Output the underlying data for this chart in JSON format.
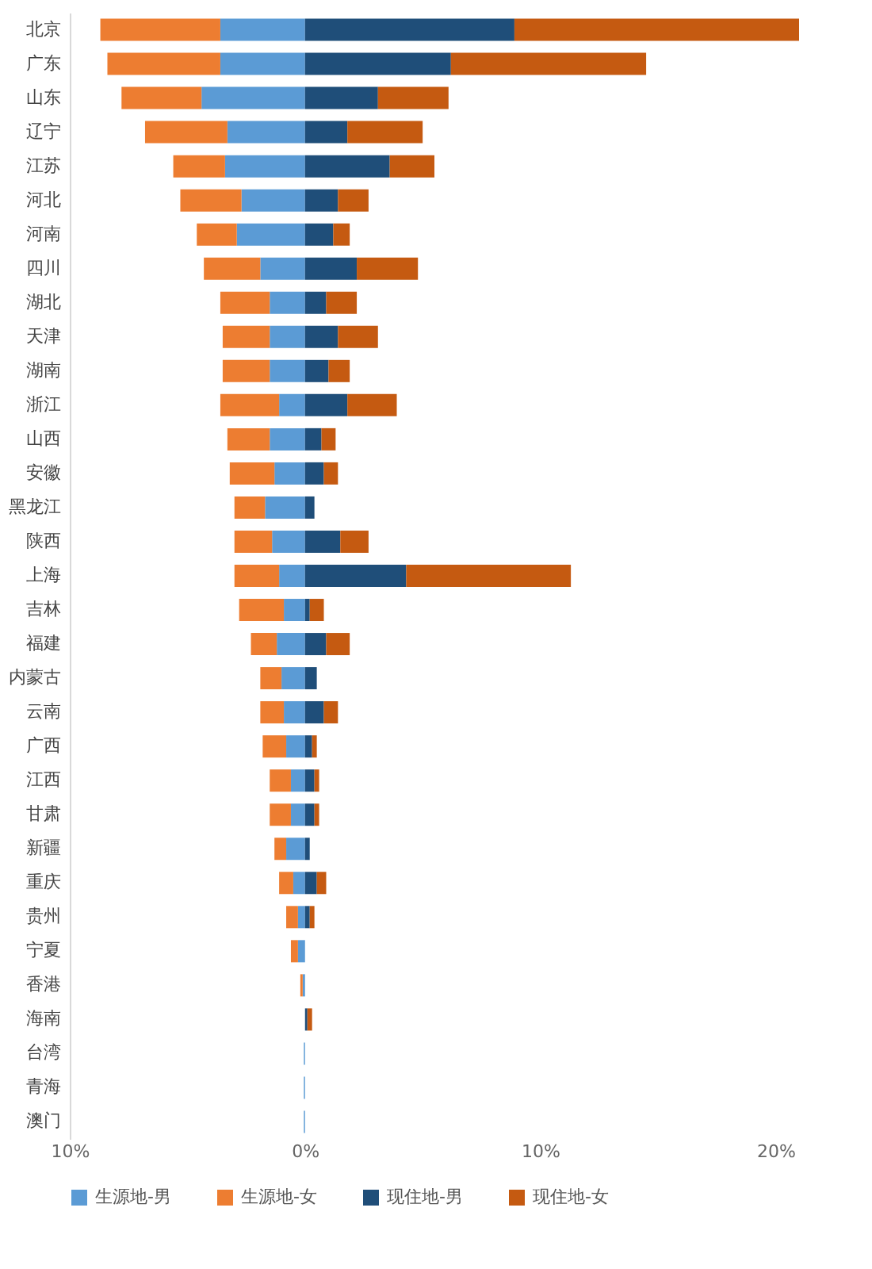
{
  "chart_data": {
    "type": "bar",
    "orientation": "horizontal",
    "stacked": true,
    "legend": "bottom",
    "grid": false,
    "categories": [
      "北京",
      "广东",
      "山东",
      "辽宁",
      "江苏",
      "河北",
      "河南",
      "四川",
      "湖北",
      "天津",
      "湖南",
      "浙江",
      "山西",
      "安徽",
      "黑龙江",
      "陕西",
      "上海",
      "吉林",
      "福建",
      "内蒙古",
      "云南",
      "广西",
      "江西",
      "甘肃",
      "新疆",
      "重庆",
      "贵州",
      "宁夏",
      "香港",
      "海南",
      "台湾",
      "青海",
      "澳门"
    ],
    "xlim": [
      -10,
      21
    ],
    "xticks": [
      {
        "value": -10,
        "label": "10%"
      },
      {
        "value": 0,
        "label": "0%"
      },
      {
        "value": 10,
        "label": "10%"
      },
      {
        "value": 20,
        "label": "20%"
      }
    ],
    "series": [
      {
        "name": "生源地-男",
        "color": "#5b9bd5",
        "values": [
          -3.6,
          -3.6,
          -4.4,
          -3.3,
          -3.4,
          -2.7,
          -2.9,
          -1.9,
          -1.5,
          -1.5,
          -1.5,
          -1.1,
          -1.5,
          -1.3,
          -1.7,
          -1.4,
          -1.1,
          -0.9,
          -1.2,
          -1.0,
          -0.9,
          -0.8,
          -0.6,
          -0.6,
          -0.8,
          -0.5,
          -0.3,
          -0.3,
          -0.1,
          0,
          -0.05,
          -0.05,
          -0.05
        ]
      },
      {
        "name": "生源地-女",
        "color": "#ed7d31",
        "values": [
          -5.1,
          -4.8,
          -3.4,
          -3.5,
          -2.2,
          -2.6,
          -1.7,
          -2.4,
          -2.1,
          -2.0,
          -2.0,
          -2.5,
          -1.8,
          -1.9,
          -1.3,
          -1.6,
          -1.9,
          -1.9,
          -1.1,
          -0.9,
          -1.0,
          -1.0,
          -0.9,
          -0.9,
          -0.5,
          -0.6,
          -0.5,
          -0.3,
          -0.1,
          0,
          0,
          0,
          0
        ]
      },
      {
        "name": "现住地-男",
        "color": "#1f4e79",
        "values": [
          8.9,
          6.2,
          3.1,
          1.8,
          3.6,
          1.4,
          1.2,
          2.2,
          0.9,
          1.4,
          1.0,
          1.8,
          0.7,
          0.8,
          0.4,
          1.5,
          4.3,
          0.2,
          0.9,
          0.5,
          0.8,
          0.3,
          0.4,
          0.4,
          0.2,
          0.5,
          0.2,
          0,
          0,
          0.1,
          0,
          0,
          0
        ]
      },
      {
        "name": "现住地-女",
        "color": "#c55a11",
        "values": [
          12.1,
          8.3,
          3.0,
          3.2,
          1.9,
          1.3,
          0.7,
          2.6,
          1.3,
          1.7,
          0.9,
          2.1,
          0.6,
          0.6,
          0,
          1.2,
          7.0,
          0.6,
          1.0,
          0,
          0.6,
          0.2,
          0.2,
          0.2,
          0,
          0.4,
          0.2,
          0,
          0,
          0.2,
          0,
          0,
          0
        ]
      }
    ]
  }
}
